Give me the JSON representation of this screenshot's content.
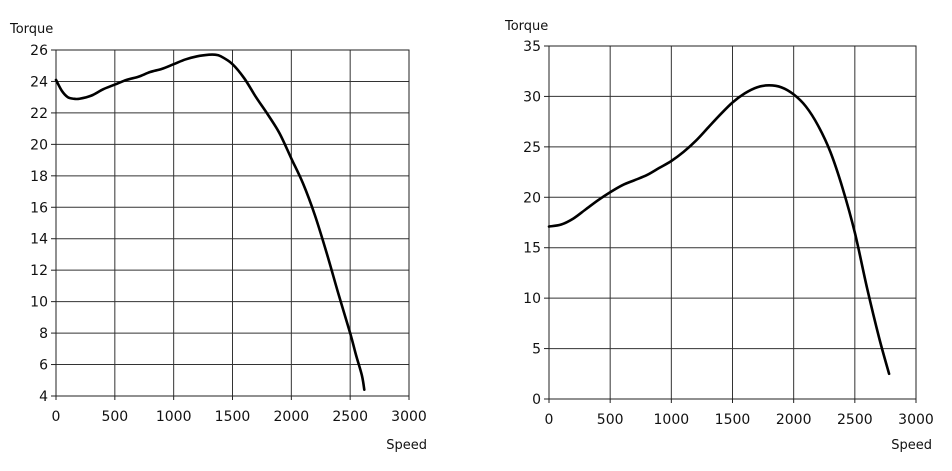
{
  "chart_data": [
    {
      "type": "line",
      "xlabel": "Speed",
      "ylabel": "Torque",
      "xlim": [
        0,
        3000
      ],
      "ylim": [
        4,
        26
      ],
      "xticks": [
        0,
        500,
        1000,
        1500,
        2000,
        2500,
        3000
      ],
      "yticks": [
        4,
        6,
        8,
        10,
        12,
        14,
        16,
        18,
        20,
        22,
        24,
        26
      ],
      "grid": true,
      "series": [
        {
          "x": [
            0,
            50,
            100,
            150,
            200,
            300,
            400,
            500,
            600,
            700,
            800,
            900,
            1000,
            1100,
            1200,
            1300,
            1350,
            1400,
            1500,
            1600,
            1700,
            1800,
            1900,
            2000,
            2100,
            2200,
            2300,
            2400,
            2500,
            2550,
            2600,
            2620
          ],
          "y": [
            24.1,
            23.4,
            23.0,
            22.9,
            22.9,
            23.1,
            23.5,
            23.8,
            24.1,
            24.3,
            24.6,
            24.8,
            25.1,
            25.4,
            25.6,
            25.7,
            25.7,
            25.6,
            25.1,
            24.2,
            23.0,
            21.9,
            20.7,
            19.1,
            17.5,
            15.5,
            13.1,
            10.5,
            8.0,
            6.6,
            5.3,
            4.4
          ]
        }
      ]
    },
    {
      "type": "line",
      "xlabel": "Speed",
      "ylabel": "Torque",
      "xlim": [
        0,
        3000
      ],
      "ylim": [
        0,
        35
      ],
      "xticks": [
        0,
        500,
        1000,
        1500,
        2000,
        2500,
        3000
      ],
      "yticks": [
        0,
        5,
        10,
        15,
        20,
        25,
        30,
        35
      ],
      "grid": true,
      "series": [
        {
          "x": [
            0,
            100,
            200,
            300,
            400,
            500,
            600,
            700,
            800,
            900,
            1000,
            1100,
            1200,
            1300,
            1400,
            1500,
            1600,
            1700,
            1800,
            1900,
            2000,
            2100,
            2200,
            2300,
            2400,
            2500,
            2600,
            2700,
            2780
          ],
          "y": [
            17.1,
            17.3,
            17.9,
            18.8,
            19.7,
            20.5,
            21.2,
            21.7,
            22.2,
            22.9,
            23.6,
            24.5,
            25.6,
            26.9,
            28.2,
            29.4,
            30.3,
            30.9,
            31.1,
            30.9,
            30.2,
            29.0,
            27.1,
            24.5,
            20.9,
            16.5,
            11.0,
            6.0,
            2.5
          ]
        }
      ]
    }
  ]
}
